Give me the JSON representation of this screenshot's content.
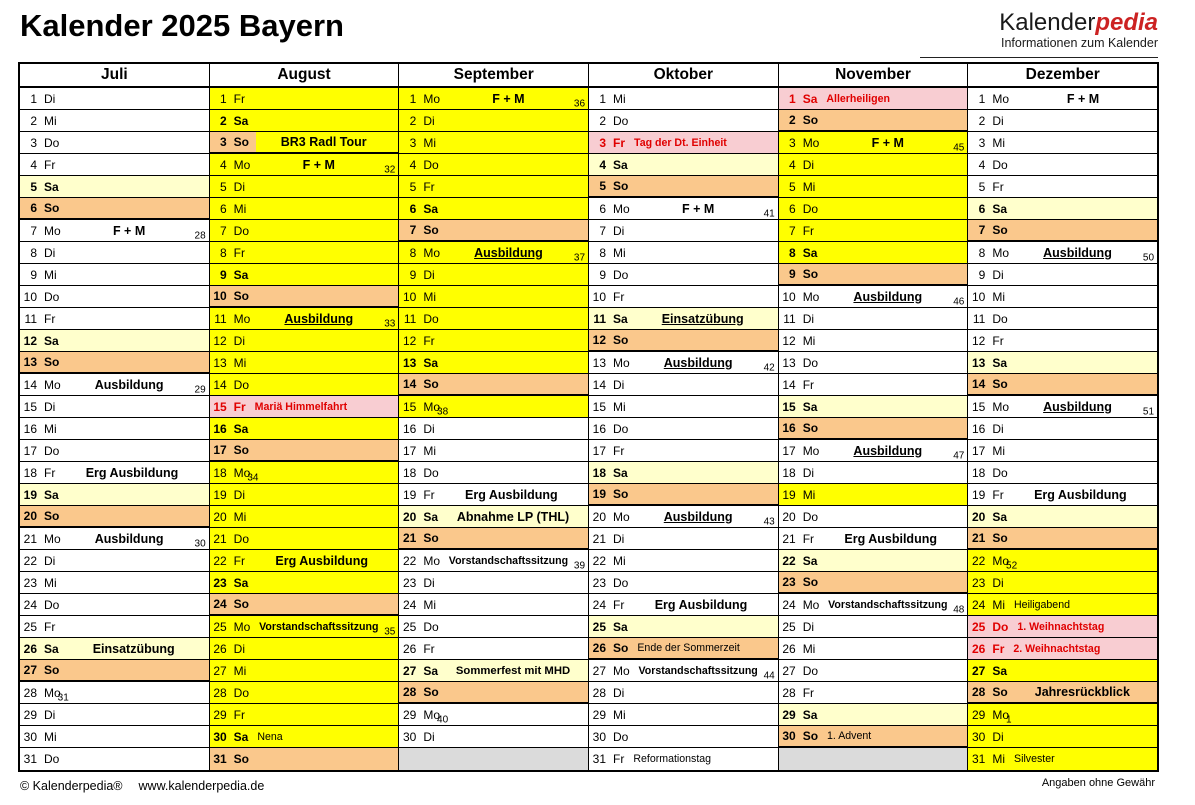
{
  "title": "Kalender 2025 Bayern",
  "logo": {
    "part1": "Kalender",
    "part2": "pedia",
    "subtitle": "Informationen zum Kalender"
  },
  "footer": {
    "copyright": "© Kalenderpedia®",
    "url": "www.kalenderpedia.de",
    "note": "Angaben ohne Gewähr"
  },
  "colors": {
    "vacation_yellow": "#ffff00",
    "saturday_cream": "#ffffcc",
    "sunday_orange": "#fac88c",
    "holiday_pink": "#f8cdd2",
    "holiday_red": "#e00000",
    "logo_red": "#cc2222",
    "filler_gray": "#dbdbdb"
  },
  "months": [
    {
      "name": "Juli",
      "days": [
        {
          "d": 1,
          "w": "Di",
          "t": "w"
        },
        {
          "d": 2,
          "w": "Mi",
          "t": "w"
        },
        {
          "d": 3,
          "w": "Do",
          "t": "w"
        },
        {
          "d": 4,
          "w": "Fr",
          "t": "w"
        },
        {
          "d": 5,
          "w": "Sa",
          "t": "s"
        },
        {
          "d": 6,
          "w": "So",
          "t": "o"
        },
        {
          "d": 7,
          "w": "Mo",
          "t": "w",
          "e": "F + M",
          "s": "big",
          "k": "28"
        },
        {
          "d": 8,
          "w": "Di",
          "t": "w"
        },
        {
          "d": 9,
          "w": "Mi",
          "t": "w"
        },
        {
          "d": 10,
          "w": "Do",
          "t": "w"
        },
        {
          "d": 11,
          "w": "Fr",
          "t": "w"
        },
        {
          "d": 12,
          "w": "Sa",
          "t": "s"
        },
        {
          "d": 13,
          "w": "So",
          "t": "o"
        },
        {
          "d": 14,
          "w": "Mo",
          "t": "w",
          "e": "Ausbildung",
          "s": "big",
          "k": "29"
        },
        {
          "d": 15,
          "w": "Di",
          "t": "w"
        },
        {
          "d": 16,
          "w": "Mi",
          "t": "w"
        },
        {
          "d": 17,
          "w": "Do",
          "t": "w"
        },
        {
          "d": 18,
          "w": "Fr",
          "t": "w",
          "e": "Erg Ausbildung",
          "s": "big"
        },
        {
          "d": 19,
          "w": "Sa",
          "t": "s"
        },
        {
          "d": 20,
          "w": "So",
          "t": "o"
        },
        {
          "d": 21,
          "w": "Mo",
          "t": "w",
          "e": "Ausbildung",
          "s": "big",
          "k": "30"
        },
        {
          "d": 22,
          "w": "Di",
          "t": "w"
        },
        {
          "d": 23,
          "w": "Mi",
          "t": "w"
        },
        {
          "d": 24,
          "w": "Do",
          "t": "w"
        },
        {
          "d": 25,
          "w": "Fr",
          "t": "w"
        },
        {
          "d": 26,
          "w": "Sa",
          "t": "s",
          "e": "Einsatzübung",
          "s": "big"
        },
        {
          "d": 27,
          "w": "So",
          "t": "o"
        },
        {
          "d": 28,
          "w": "Mo",
          "t": "w",
          "k": "31"
        },
        {
          "d": 29,
          "w": "Di",
          "t": "w"
        },
        {
          "d": 30,
          "w": "Mi",
          "t": "w"
        },
        {
          "d": 31,
          "w": "Do",
          "t": "w"
        }
      ]
    },
    {
      "name": "August",
      "days": [
        {
          "d": 1,
          "w": "Fr",
          "t": "y"
        },
        {
          "d": 2,
          "w": "Sa",
          "t": "ys"
        },
        {
          "d": 3,
          "w": "So",
          "t": "os",
          "e": "BR3 Radl Tour",
          "s": "big"
        },
        {
          "d": 4,
          "w": "Mo",
          "t": "y",
          "e": "F + M",
          "s": "big",
          "k": "32"
        },
        {
          "d": 5,
          "w": "Di",
          "t": "y"
        },
        {
          "d": 6,
          "w": "Mi",
          "t": "y"
        },
        {
          "d": 7,
          "w": "Do",
          "t": "y"
        },
        {
          "d": 8,
          "w": "Fr",
          "t": "y"
        },
        {
          "d": 9,
          "w": "Sa",
          "t": "ys"
        },
        {
          "d": 10,
          "w": "So",
          "t": "o"
        },
        {
          "d": 11,
          "w": "Mo",
          "t": "y",
          "e": "Ausbildung",
          "s": "big",
          "u": true,
          "k": "33"
        },
        {
          "d": 12,
          "w": "Di",
          "t": "y"
        },
        {
          "d": 13,
          "w": "Mi",
          "t": "y"
        },
        {
          "d": 14,
          "w": "Do",
          "t": "y"
        },
        {
          "d": 15,
          "w": "Fr",
          "t": "h",
          "e": "Mariä Himmelfahrt",
          "s": "hol"
        },
        {
          "d": 16,
          "w": "Sa",
          "t": "ys"
        },
        {
          "d": 17,
          "w": "So",
          "t": "o"
        },
        {
          "d": 18,
          "w": "Mo",
          "t": "y",
          "k": "34"
        },
        {
          "d": 19,
          "w": "Di",
          "t": "y"
        },
        {
          "d": 20,
          "w": "Mi",
          "t": "y"
        },
        {
          "d": 21,
          "w": "Do",
          "t": "y"
        },
        {
          "d": 22,
          "w": "Fr",
          "t": "y",
          "e": "Erg Ausbildung",
          "s": "big"
        },
        {
          "d": 23,
          "w": "Sa",
          "t": "ys"
        },
        {
          "d": 24,
          "w": "So",
          "t": "o"
        },
        {
          "d": 25,
          "w": "Mo",
          "t": "y",
          "e": "Vorstandschaftssitzung",
          "s": "med",
          "k": "35"
        },
        {
          "d": 26,
          "w": "Di",
          "t": "y"
        },
        {
          "d": 27,
          "w": "Mi",
          "t": "y"
        },
        {
          "d": 28,
          "w": "Do",
          "t": "y"
        },
        {
          "d": 29,
          "w": "Fr",
          "t": "y"
        },
        {
          "d": 30,
          "w": "Sa",
          "t": "ys",
          "e": "Nena",
          "s": "small"
        },
        {
          "d": 31,
          "w": "So",
          "t": "o"
        }
      ]
    },
    {
      "name": "September",
      "days": [
        {
          "d": 1,
          "w": "Mo",
          "t": "y",
          "e": "F + M",
          "s": "big",
          "k": "36"
        },
        {
          "d": 2,
          "w": "Di",
          "t": "y"
        },
        {
          "d": 3,
          "w": "Mi",
          "t": "y"
        },
        {
          "d": 4,
          "w": "Do",
          "t": "y"
        },
        {
          "d": 5,
          "w": "Fr",
          "t": "y"
        },
        {
          "d": 6,
          "w": "Sa",
          "t": "ys"
        },
        {
          "d": 7,
          "w": "So",
          "t": "o"
        },
        {
          "d": 8,
          "w": "Mo",
          "t": "y",
          "e": "Ausbildung",
          "s": "big",
          "u": true,
          "k": "37"
        },
        {
          "d": 9,
          "w": "Di",
          "t": "y"
        },
        {
          "d": 10,
          "w": "Mi",
          "t": "y"
        },
        {
          "d": 11,
          "w": "Do",
          "t": "y"
        },
        {
          "d": 12,
          "w": "Fr",
          "t": "y"
        },
        {
          "d": 13,
          "w": "Sa",
          "t": "ys"
        },
        {
          "d": 14,
          "w": "So",
          "t": "o"
        },
        {
          "d": 15,
          "w": "Mo",
          "t": "y",
          "k": "38"
        },
        {
          "d": 16,
          "w": "Di",
          "t": "w"
        },
        {
          "d": 17,
          "w": "Mi",
          "t": "w"
        },
        {
          "d": 18,
          "w": "Do",
          "t": "w"
        },
        {
          "d": 19,
          "w": "Fr",
          "t": "w",
          "e": "Erg Ausbildung",
          "s": "big"
        },
        {
          "d": 20,
          "w": "Sa",
          "t": "s",
          "e": "Abnahme LP (THL)",
          "s": "big"
        },
        {
          "d": 21,
          "w": "So",
          "t": "o"
        },
        {
          "d": 22,
          "w": "Mo",
          "t": "w",
          "e": "Vorstandschaftssitzung",
          "s": "med",
          "k": "39"
        },
        {
          "d": 23,
          "w": "Di",
          "t": "w"
        },
        {
          "d": 24,
          "w": "Mi",
          "t": "w"
        },
        {
          "d": 25,
          "w": "Do",
          "t": "w"
        },
        {
          "d": 26,
          "w": "Fr",
          "t": "w"
        },
        {
          "d": 27,
          "w": "Sa",
          "t": "s",
          "e": "Sommerfest mit MHD",
          "s": "mid"
        },
        {
          "d": 28,
          "w": "So",
          "t": "o"
        },
        {
          "d": 29,
          "w": "Mo",
          "t": "w",
          "k": "40"
        },
        {
          "d": 30,
          "w": "Di",
          "t": "w"
        },
        {
          "t": "g"
        }
      ]
    },
    {
      "name": "Oktober",
      "days": [
        {
          "d": 1,
          "w": "Mi",
          "t": "w"
        },
        {
          "d": 2,
          "w": "Do",
          "t": "w"
        },
        {
          "d": 3,
          "w": "Fr",
          "t": "h",
          "e": "Tag der Dt. Einheit",
          "s": "hol"
        },
        {
          "d": 4,
          "w": "Sa",
          "t": "s"
        },
        {
          "d": 5,
          "w": "So",
          "t": "o"
        },
        {
          "d": 6,
          "w": "Mo",
          "t": "w",
          "e": "F + M",
          "s": "big",
          "k": "41"
        },
        {
          "d": 7,
          "w": "Di",
          "t": "w"
        },
        {
          "d": 8,
          "w": "Mi",
          "t": "w"
        },
        {
          "d": 9,
          "w": "Do",
          "t": "w"
        },
        {
          "d": 10,
          "w": "Fr",
          "t": "w"
        },
        {
          "d": 11,
          "w": "Sa",
          "t": "s",
          "e": "Einsatzübung",
          "s": "big",
          "u": true
        },
        {
          "d": 12,
          "w": "So",
          "t": "o"
        },
        {
          "d": 13,
          "w": "Mo",
          "t": "w",
          "e": "Ausbildung",
          "s": "big",
          "u": true,
          "k": "42"
        },
        {
          "d": 14,
          "w": "Di",
          "t": "w"
        },
        {
          "d": 15,
          "w": "Mi",
          "t": "w"
        },
        {
          "d": 16,
          "w": "Do",
          "t": "w"
        },
        {
          "d": 17,
          "w": "Fr",
          "t": "w"
        },
        {
          "d": 18,
          "w": "Sa",
          "t": "s"
        },
        {
          "d": 19,
          "w": "So",
          "t": "o"
        },
        {
          "d": 20,
          "w": "Mo",
          "t": "w",
          "e": "Ausbildung",
          "s": "big",
          "u": true,
          "k": "43"
        },
        {
          "d": 21,
          "w": "Di",
          "t": "w"
        },
        {
          "d": 22,
          "w": "Mi",
          "t": "w"
        },
        {
          "d": 23,
          "w": "Do",
          "t": "w"
        },
        {
          "d": 24,
          "w": "Fr",
          "t": "w",
          "e": "Erg Ausbildung",
          "s": "big"
        },
        {
          "d": 25,
          "w": "Sa",
          "t": "s"
        },
        {
          "d": 26,
          "w": "So",
          "t": "o",
          "e": "Ende der Sommerzeit",
          "s": "small"
        },
        {
          "d": 27,
          "w": "Mo",
          "t": "w",
          "e": "Vorstandschaftssitzung",
          "s": "med",
          "k": "44"
        },
        {
          "d": 28,
          "w": "Di",
          "t": "w"
        },
        {
          "d": 29,
          "w": "Mi",
          "t": "w"
        },
        {
          "d": 30,
          "w": "Do",
          "t": "w"
        },
        {
          "d": 31,
          "w": "Fr",
          "t": "w",
          "e": "Reformationstag",
          "s": "small"
        }
      ]
    },
    {
      "name": "November",
      "days": [
        {
          "d": 1,
          "w": "Sa",
          "t": "h",
          "e": "Allerheiligen",
          "s": "hol"
        },
        {
          "d": 2,
          "w": "So",
          "t": "o"
        },
        {
          "d": 3,
          "w": "Mo",
          "t": "y",
          "e": "F + M",
          "s": "big",
          "k": "45"
        },
        {
          "d": 4,
          "w": "Di",
          "t": "y"
        },
        {
          "d": 5,
          "w": "Mi",
          "t": "y"
        },
        {
          "d": 6,
          "w": "Do",
          "t": "y"
        },
        {
          "d": 7,
          "w": "Fr",
          "t": "y"
        },
        {
          "d": 8,
          "w": "Sa",
          "t": "ys"
        },
        {
          "d": 9,
          "w": "So",
          "t": "o"
        },
        {
          "d": 10,
          "w": "Mo",
          "t": "w",
          "e": "Ausbildung",
          "s": "big",
          "u": true,
          "k": "46"
        },
        {
          "d": 11,
          "w": "Di",
          "t": "w"
        },
        {
          "d": 12,
          "w": "Mi",
          "t": "w"
        },
        {
          "d": 13,
          "w": "Do",
          "t": "w"
        },
        {
          "d": 14,
          "w": "Fr",
          "t": "w"
        },
        {
          "d": 15,
          "w": "Sa",
          "t": "s"
        },
        {
          "d": 16,
          "w": "So",
          "t": "o"
        },
        {
          "d": 17,
          "w": "Mo",
          "t": "w",
          "e": "Ausbildung",
          "s": "big",
          "u": true,
          "k": "47"
        },
        {
          "d": 18,
          "w": "Di",
          "t": "w"
        },
        {
          "d": 19,
          "w": "Mi",
          "t": "y"
        },
        {
          "d": 20,
          "w": "Do",
          "t": "w"
        },
        {
          "d": 21,
          "w": "Fr",
          "t": "w",
          "e": "Erg Ausbildung",
          "s": "big"
        },
        {
          "d": 22,
          "w": "Sa",
          "t": "s"
        },
        {
          "d": 23,
          "w": "So",
          "t": "o"
        },
        {
          "d": 24,
          "w": "Mo",
          "t": "w",
          "e": "Vorstandschaftssitzung",
          "s": "med",
          "k": "48"
        },
        {
          "d": 25,
          "w": "Di",
          "t": "w"
        },
        {
          "d": 26,
          "w": "Mi",
          "t": "w"
        },
        {
          "d": 27,
          "w": "Do",
          "t": "w"
        },
        {
          "d": 28,
          "w": "Fr",
          "t": "w"
        },
        {
          "d": 29,
          "w": "Sa",
          "t": "s"
        },
        {
          "d": 30,
          "w": "So",
          "t": "o",
          "e": "1. Advent",
          "s": "small"
        },
        {
          "t": "g"
        }
      ]
    },
    {
      "name": "Dezember",
      "days": [
        {
          "d": 1,
          "w": "Mo",
          "t": "w",
          "e": "F + M",
          "s": "big"
        },
        {
          "d": 2,
          "w": "Di",
          "t": "w"
        },
        {
          "d": 3,
          "w": "Mi",
          "t": "w"
        },
        {
          "d": 4,
          "w": "Do",
          "t": "w"
        },
        {
          "d": 5,
          "w": "Fr",
          "t": "w"
        },
        {
          "d": 6,
          "w": "Sa",
          "t": "s"
        },
        {
          "d": 7,
          "w": "So",
          "t": "o"
        },
        {
          "d": 8,
          "w": "Mo",
          "t": "w",
          "e": "Ausbildung",
          "s": "big",
          "u": true,
          "k": "50"
        },
        {
          "d": 9,
          "w": "Di",
          "t": "w"
        },
        {
          "d": 10,
          "w": "Mi",
          "t": "w"
        },
        {
          "d": 11,
          "w": "Do",
          "t": "w"
        },
        {
          "d": 12,
          "w": "Fr",
          "t": "w"
        },
        {
          "d": 13,
          "w": "Sa",
          "t": "s"
        },
        {
          "d": 14,
          "w": "So",
          "t": "o"
        },
        {
          "d": 15,
          "w": "Mo",
          "t": "w",
          "e": "Ausbildung",
          "s": "big",
          "u": true,
          "k": "51"
        },
        {
          "d": 16,
          "w": "Di",
          "t": "w"
        },
        {
          "d": 17,
          "w": "Mi",
          "t": "w"
        },
        {
          "d": 18,
          "w": "Do",
          "t": "w"
        },
        {
          "d": 19,
          "w": "Fr",
          "t": "w",
          "e": "Erg Ausbildung",
          "s": "big"
        },
        {
          "d": 20,
          "w": "Sa",
          "t": "s"
        },
        {
          "d": 21,
          "w": "So",
          "t": "o"
        },
        {
          "d": 22,
          "w": "Mo",
          "t": "y",
          "k": "52"
        },
        {
          "d": 23,
          "w": "Di",
          "t": "y"
        },
        {
          "d": 24,
          "w": "Mi",
          "t": "y",
          "e": "Heiligabend",
          "s": "small"
        },
        {
          "d": 25,
          "w": "Do",
          "t": "h",
          "e": "1. Weihnachtstag",
          "s": "hol"
        },
        {
          "d": 26,
          "w": "Fr",
          "t": "h",
          "e": "2. Weihnachtstag",
          "s": "hol"
        },
        {
          "d": 27,
          "w": "Sa",
          "t": "ys"
        },
        {
          "d": 28,
          "w": "So",
          "t": "o",
          "e": "Jahresrückblick",
          "s": "big"
        },
        {
          "d": 29,
          "w": "Mo",
          "t": "y",
          "k": "1"
        },
        {
          "d": 30,
          "w": "Di",
          "t": "y"
        },
        {
          "d": 31,
          "w": "Mi",
          "t": "y",
          "e": "Silvester",
          "s": "small"
        }
      ]
    }
  ]
}
